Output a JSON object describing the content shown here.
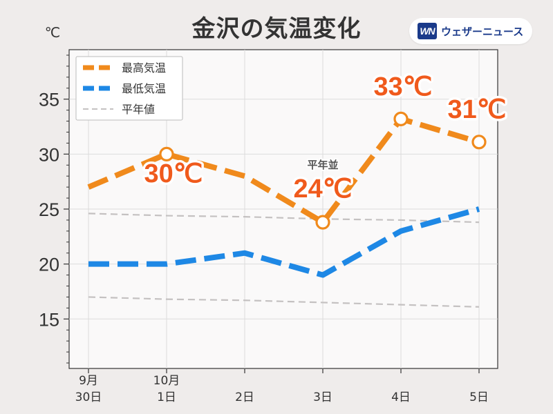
{
  "header": {
    "title": "金沢の気温変化",
    "logo_mark": "WN",
    "logo_text": "ウェザーニュース"
  },
  "chart_data": {
    "type": "line",
    "title": "金沢の気温変化",
    "ylabel": "℃",
    "ylim": [
      10.5,
      39.5
    ],
    "yticks": [
      15,
      20,
      25,
      30,
      35
    ],
    "categories": [
      [
        "9月",
        "30日"
      ],
      [
        "10月",
        "1日"
      ],
      [
        "",
        "2日"
      ],
      [
        "",
        "3日"
      ],
      [
        "",
        "4日"
      ],
      [
        "",
        "5日"
      ]
    ],
    "series": [
      {
        "name": "最高気温",
        "color": "#f08a1c",
        "style": "dashed-thick",
        "values": [
          27,
          30,
          28,
          23.8,
          33.2,
          31.1
        ]
      },
      {
        "name": "最低気温",
        "color": "#1e88e5",
        "style": "dashed-thick",
        "values": [
          20,
          20,
          21,
          19,
          23,
          25
        ]
      },
      {
        "name": "平年値",
        "color": "#c4c1c1",
        "style": "dashed-thin",
        "values": [
          24.6,
          24.4,
          24.3,
          24.1,
          24.0,
          23.8
        ]
      },
      {
        "name": "",
        "color": "#c4c1c1",
        "style": "dashed-thin",
        "values": [
          17.0,
          16.8,
          16.7,
          16.5,
          16.3,
          16.1
        ]
      }
    ],
    "highlights": [
      {
        "index": 1,
        "label": "30℃"
      },
      {
        "index": 3,
        "label": "24℃",
        "note": "平年並"
      },
      {
        "index": 4,
        "label": "33℃"
      },
      {
        "index": 5,
        "label": "31℃"
      }
    ],
    "legend": {
      "position": "top-left",
      "entries": [
        "最高気温",
        "最低気温",
        "平年値"
      ]
    },
    "grid": true
  }
}
